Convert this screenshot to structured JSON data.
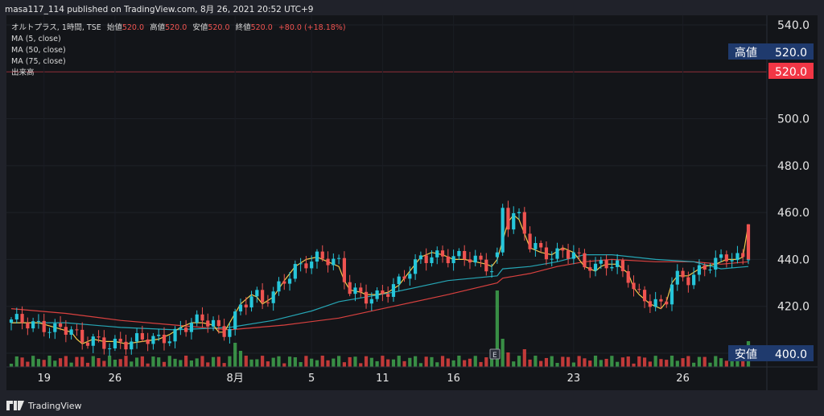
{
  "header": {
    "publish_line": "masa117_114 published on TradingView.com, 8月 26, 2021 20:52 UTC+9"
  },
  "legend": {
    "symbol_line": {
      "symbol": "オルトプラス, 1時間, TSE",
      "open_label": "始値",
      "open_value": "520.0",
      "high_label": "高値",
      "high_value": "520.0",
      "low_label": "安値",
      "low_value": "520.0",
      "close_label": "終値",
      "close_value": "520.0",
      "change": "+80.0 (+18.18%)"
    },
    "indicators": [
      "MA (5, close)",
      "MA (50, close)",
      "MA (75, close)",
      "出来高"
    ]
  },
  "price_scale": {
    "high_badge_label": "高値",
    "high_badge_value": "520.0",
    "last_price_badge": "520.0",
    "low_badge_label": "安値",
    "low_badge_value": "400.0"
  },
  "event_marker": "E",
  "footer": {
    "brand": "TradingView"
  },
  "colors": {
    "background": "#131519",
    "up": "#26c6da",
    "down": "#ef5350",
    "ma5": "#f2c94c",
    "ma50": "#26a6b5",
    "ma75": "#d9413f",
    "vol_up": "#3fa34d",
    "vol_down": "#e0413f",
    "badge": "#1f3a6d",
    "last_price": "#f23645"
  },
  "chart_data": {
    "type": "candlestick",
    "y_axis": {
      "ticks": [
        400,
        420,
        440,
        460,
        480,
        500,
        520,
        540
      ],
      "ylim": [
        398,
        543
      ]
    },
    "x_axis": {
      "tick_labels": [
        "19",
        "26",
        "8月",
        "5",
        "11",
        "16",
        "23",
        "26"
      ]
    },
    "ma_5": [
      [
        0,
        413
      ],
      [
        5,
        413
      ],
      [
        8,
        411
      ],
      [
        11,
        409
      ],
      [
        12,
        406
      ],
      [
        13,
        404
      ],
      [
        15,
        406
      ],
      [
        17,
        405
      ],
      [
        19,
        405
      ],
      [
        21,
        404
      ],
      [
        24,
        405
      ],
      [
        27,
        406
      ],
      [
        29,
        408
      ],
      [
        31,
        411
      ],
      [
        33,
        413
      ],
      [
        35,
        413
      ],
      [
        37,
        412
      ],
      [
        38,
        409
      ],
      [
        39,
        409
      ],
      [
        40,
        413
      ],
      [
        42,
        421
      ],
      [
        44,
        425
      ],
      [
        45,
        424
      ],
      [
        46,
        421
      ],
      [
        48,
        424
      ],
      [
        50,
        431
      ],
      [
        52,
        437
      ],
      [
        54,
        440
      ],
      [
        56,
        441
      ],
      [
        58,
        439
      ],
      [
        60,
        437
      ],
      [
        61,
        431
      ],
      [
        62,
        427
      ],
      [
        64,
        426
      ],
      [
        65,
        425
      ],
      [
        67,
        425
      ],
      [
        69,
        426
      ],
      [
        71,
        429
      ],
      [
        73,
        435
      ],
      [
        75,
        441
      ],
      [
        77,
        443
      ],
      [
        79,
        442
      ],
      [
        81,
        440
      ],
      [
        83,
        440
      ],
      [
        85,
        439
      ],
      [
        87,
        438
      ],
      [
        88,
        437
      ],
      [
        89,
        440
      ],
      [
        90,
        448
      ],
      [
        91,
        456
      ],
      [
        92,
        459
      ],
      [
        93,
        457
      ],
      [
        94,
        451
      ],
      [
        95,
        445
      ],
      [
        97,
        443
      ],
      [
        99,
        442
      ],
      [
        101,
        445
      ],
      [
        103,
        443
      ],
      [
        105,
        437
      ],
      [
        107,
        435
      ],
      [
        108,
        437
      ],
      [
        109,
        438
      ],
      [
        111,
        438
      ],
      [
        113,
        434
      ],
      [
        114,
        428
      ],
      [
        115,
        425
      ],
      [
        117,
        421
      ],
      [
        119,
        419
      ],
      [
        120,
        422
      ],
      [
        121,
        430
      ],
      [
        122,
        433
      ],
      [
        124,
        433
      ],
      [
        126,
        436
      ],
      [
        127,
        437
      ],
      [
        129,
        438
      ],
      [
        131,
        440
      ],
      [
        133,
        440
      ],
      [
        134,
        441
      ],
      [
        135,
        455
      ]
    ],
    "ma_50": [
      [
        0,
        413
      ],
      [
        10,
        413
      ],
      [
        20,
        411
      ],
      [
        30,
        410
      ],
      [
        40,
        411
      ],
      [
        48,
        414
      ],
      [
        55,
        418
      ],
      [
        60,
        422
      ],
      [
        70,
        426
      ],
      [
        80,
        431
      ],
      [
        89,
        433
      ],
      [
        90,
        436
      ],
      [
        95,
        437
      ],
      [
        100,
        439
      ],
      [
        105,
        442
      ],
      [
        110,
        442
      ],
      [
        118,
        440
      ],
      [
        125,
        439
      ],
      [
        130,
        436
      ],
      [
        135,
        437
      ]
    ],
    "ma_75": [
      [
        0,
        419
      ],
      [
        10,
        417
      ],
      [
        20,
        414
      ],
      [
        30,
        412
      ],
      [
        40,
        410
      ],
      [
        50,
        412
      ],
      [
        60,
        415
      ],
      [
        70,
        420
      ],
      [
        80,
        425
      ],
      [
        89,
        430
      ],
      [
        90,
        432
      ],
      [
        95,
        434
      ],
      [
        100,
        437
      ],
      [
        105,
        439
      ],
      [
        110,
        440
      ],
      [
        118,
        439
      ],
      [
        125,
        439
      ],
      [
        130,
        438
      ],
      [
        135,
        439
      ]
    ],
    "volume_spikes": [
      {
        "i": 89,
        "value": 0.95
      },
      {
        "i": 90,
        "value": 0.35
      },
      {
        "i": 41,
        "value": 0.3
      },
      {
        "i": 42,
        "value": 0.2
      },
      {
        "i": 135,
        "value": 0.32
      },
      {
        "i": 94,
        "value": 0.22
      },
      {
        "i": 91,
        "value": 0.18
      }
    ]
  }
}
